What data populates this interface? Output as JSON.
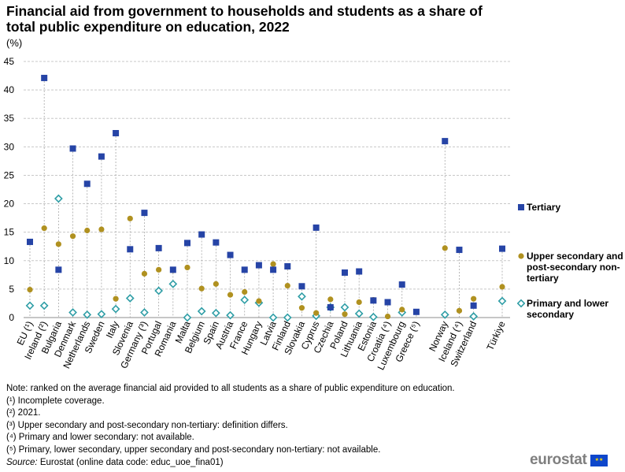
{
  "title": "Financial aid from government to households and students as a share of total public expenditure on education, 2022",
  "unit": "(%)",
  "chart_data": {
    "type": "scatter",
    "title": "Financial aid from government to households and students as a share of total public expenditure on education, 2022",
    "ylabel": "(%)",
    "ylim": [
      0,
      45
    ],
    "yticks": [
      0,
      5,
      10,
      15,
      20,
      25,
      30,
      35,
      40,
      45
    ],
    "grid": true,
    "legend_position": "right",
    "categories": [
      "EU (¹)",
      "Ireland (²)",
      "Bulgaria",
      "Denmark",
      "Netherlands",
      "Sweden",
      "Italy",
      "Slovenia",
      "Germany (³)",
      "Portugal",
      "Romania",
      "Malta",
      "Belgium",
      "Spain",
      "Austria",
      "France",
      "Hungary",
      "Latvia",
      "Finland",
      "Slovakia",
      "Cyprus",
      "Czechia",
      "Poland",
      "Lithuania",
      "Estonia",
      "Croatia (⁴)",
      "Luxembourg",
      "Greece (⁵)",
      "",
      "Norway",
      "Iceland (⁴)",
      "Switzerland",
      "",
      "Türkiye"
    ],
    "series": [
      {
        "name": "Tertiary",
        "color": "#2644a6",
        "marker": "square",
        "values": [
          13.3,
          42.1,
          8.4,
          29.7,
          23.5,
          28.3,
          32.4,
          12.0,
          18.4,
          12.2,
          8.4,
          13.1,
          14.6,
          13.2,
          11.0,
          8.4,
          9.2,
          8.4,
          9.0,
          5.5,
          15.8,
          1.8,
          7.9,
          8.1,
          3.0,
          2.7,
          5.8,
          1.0,
          null,
          31.0,
          11.9,
          2.1,
          null,
          12.1
        ]
      },
      {
        "name": "Upper secondary and post-secondary non-tertiary",
        "color": "#b09120",
        "marker": "circle",
        "values": [
          4.9,
          15.7,
          12.9,
          14.3,
          15.3,
          15.5,
          3.3,
          17.4,
          7.7,
          8.4,
          8.3,
          8.8,
          5.1,
          5.9,
          4.0,
          4.5,
          2.9,
          9.4,
          5.6,
          1.7,
          0.8,
          3.2,
          0.6,
          2.7,
          3.1,
          0.2,
          1.4,
          null,
          null,
          12.2,
          1.2,
          3.3,
          null,
          5.4
        ]
      },
      {
        "name": "Primary and lower secondary",
        "color": "#2f9ea6",
        "marker": "diamond-open",
        "values": [
          2.1,
          2.1,
          20.9,
          0.9,
          0.5,
          0.6,
          1.5,
          3.4,
          0.9,
          4.7,
          5.9,
          0.0,
          1.1,
          0.8,
          0.4,
          3.1,
          2.6,
          0.0,
          0.0,
          3.7,
          0.3,
          1.8,
          1.8,
          0.7,
          0.1,
          null,
          0.9,
          null,
          null,
          0.5,
          null,
          0.2,
          null,
          2.9
        ]
      }
    ]
  },
  "legend": {
    "tertiary": "Tertiary",
    "upper": "Upper secondary and post-secondary non-tertiary",
    "primary": "Primary and lower secondary"
  },
  "notes": {
    "note": "Note: ranked on the average financial aid provided to all students as a share of public expenditure on education.",
    "n1": "(¹) Incomplete coverage.",
    "n2": "(²) 2021.",
    "n3": "(³) Upper secondary and post-secondary non-tertiary: definition differs.",
    "n4": "(⁴) Primary and lower secondary: not available.",
    "n5": "(⁵) Primary, lower secondary, upper secondary and post-secondary non-tertiary: not available.",
    "source_label": "Source:",
    "source_text": " Eurostat (online data code: educ_uoe_fina01)"
  },
  "logo": {
    "text": "eurostat",
    "color": "#7f7f7f",
    "flag_color": "#0e47cb"
  }
}
